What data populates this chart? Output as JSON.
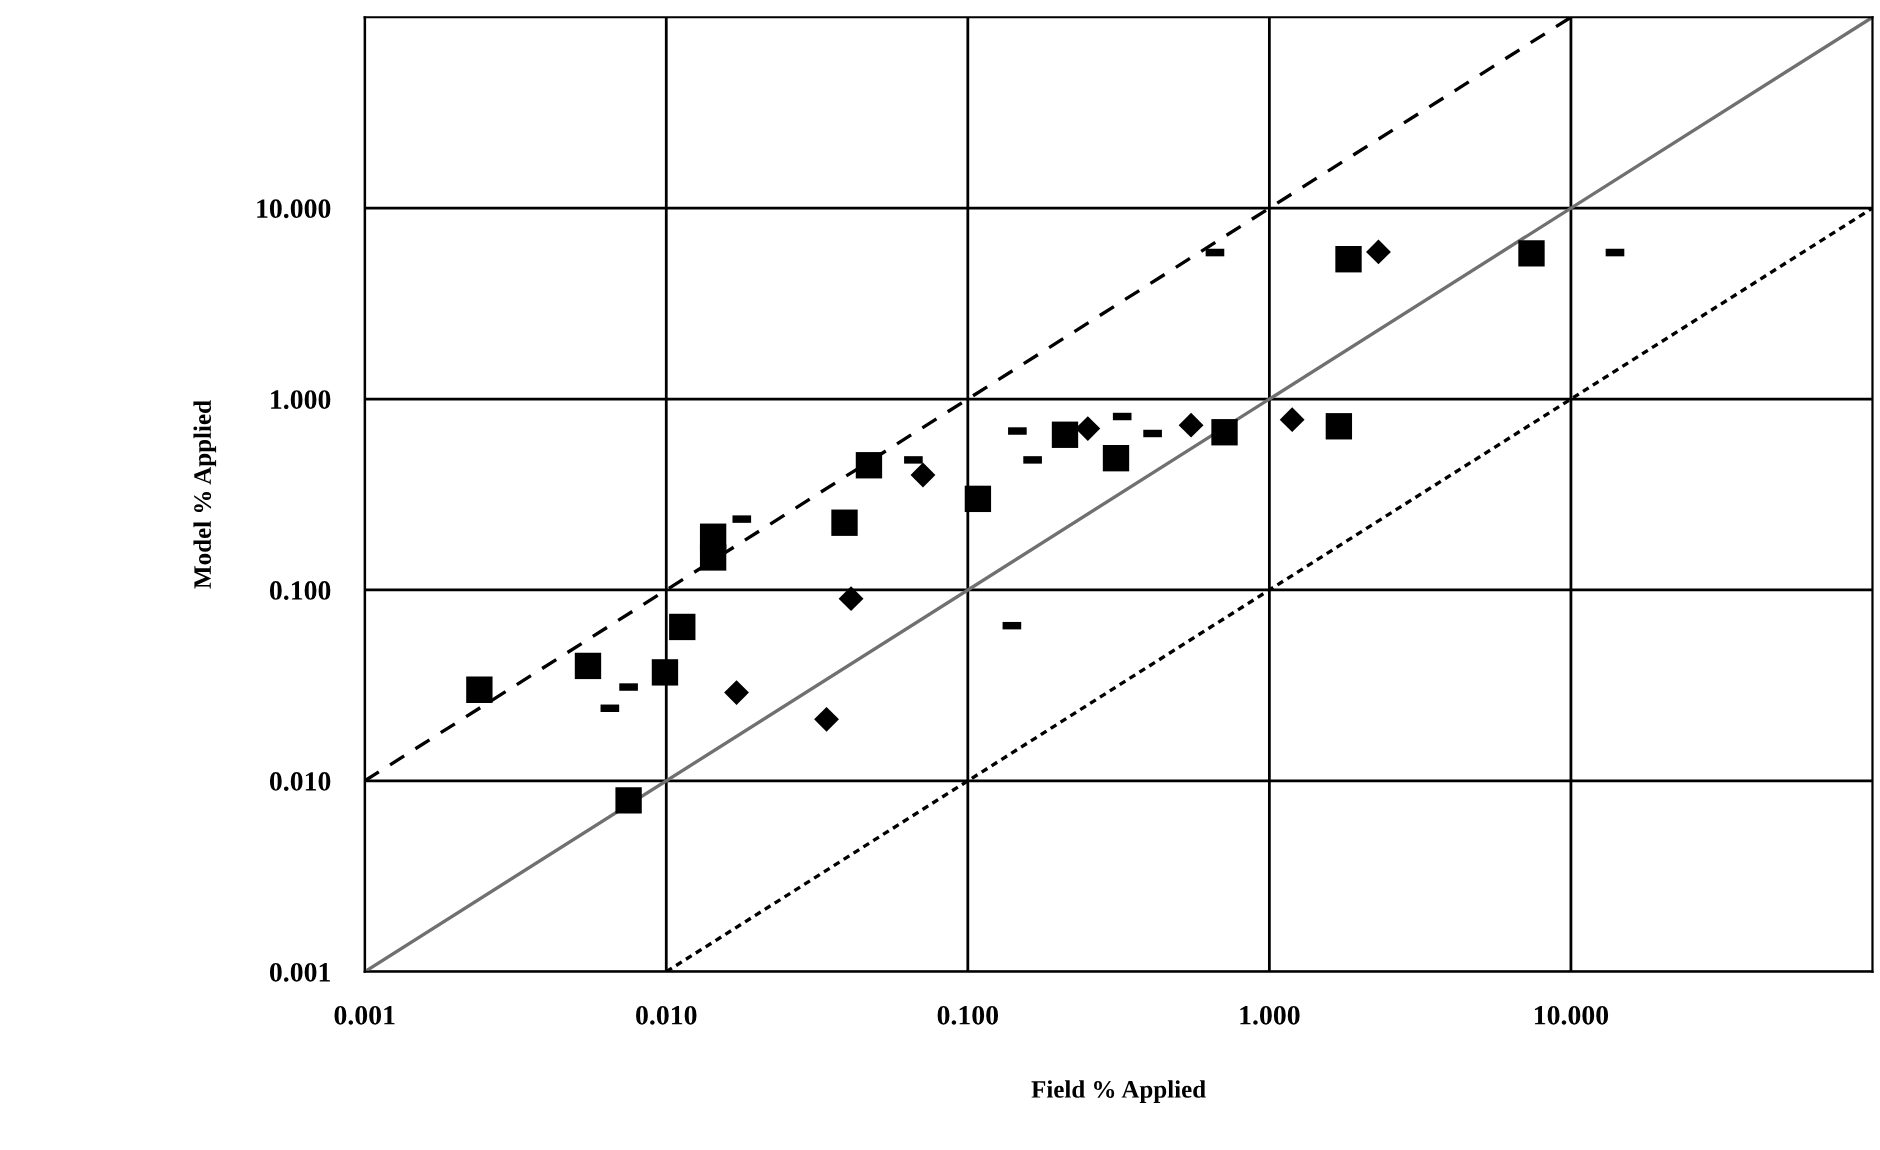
{
  "chart_data": {
    "type": "scatter",
    "xlabel": "Field % Applied",
    "ylabel": "Model % Applied",
    "log": "xy",
    "grid": true,
    "legend": false,
    "xlim": [
      0.001,
      100
    ],
    "ylim": [
      0.001,
      100
    ],
    "xticks": [
      {
        "value": 0.001,
        "label": "0.001"
      },
      {
        "value": 0.01,
        "label": "0.010"
      },
      {
        "value": 0.1,
        "label": "0.100"
      },
      {
        "value": 1,
        "label": "1.000"
      },
      {
        "value": 10,
        "label": "10.000"
      }
    ],
    "yticks": [
      {
        "value": 0.001,
        "label": "0.001"
      },
      {
        "value": 0.01,
        "label": "0.010"
      },
      {
        "value": 0.1,
        "label": "0.100"
      },
      {
        "value": 1,
        "label": "1.000"
      },
      {
        "value": 10,
        "label": "10.000"
      }
    ],
    "series": [
      {
        "type": "line",
        "color": "#707070",
        "line_style": "solid",
        "x": [
          0.001,
          100
        ],
        "values": [
          0.001,
          100
        ]
      },
      {
        "type": "line",
        "color": "#000000",
        "line_style": "dashed",
        "x": [
          0.001,
          10
        ],
        "values": [
          0.01,
          100
        ]
      },
      {
        "type": "line",
        "color": "#000000",
        "line_style": "dotted",
        "x": [
          0.01,
          100
        ],
        "values": [
          0.001,
          10
        ]
      },
      {
        "marker": "square",
        "color": "#000000",
        "x": [
          0.0024,
          0.0055,
          0.0099,
          0.0075,
          0.0113,
          0.0143,
          0.0143,
          0.039,
          0.047,
          0.108,
          0.21,
          0.31,
          0.71,
          1.7,
          1.83,
          7.4
        ],
        "values": [
          0.03,
          0.04,
          0.037,
          0.0079,
          0.064,
          0.19,
          0.148,
          0.225,
          0.45,
          0.3,
          0.65,
          0.49,
          0.67,
          0.72,
          5.4,
          5.8
        ]
      },
      {
        "marker": "diamond",
        "color": "#000000",
        "x": [
          0.0171,
          0.034,
          0.041,
          0.071,
          0.25,
          0.55,
          1.19,
          2.3
        ],
        "values": [
          0.029,
          0.021,
          0.09,
          0.4,
          0.7,
          0.73,
          0.78,
          5.9
        ]
      },
      {
        "color": "#000000",
        "x": [
          0.0065,
          0.0075,
          0.0178,
          0.066,
          0.14,
          0.146,
          0.164,
          0.325,
          0.41,
          0.66,
          14.0
        ],
        "values": [
          0.024,
          0.031,
          0.235,
          0.48,
          0.065,
          0.68,
          0.48,
          0.81,
          0.66,
          5.85,
          5.85
        ]
      }
    ]
  }
}
